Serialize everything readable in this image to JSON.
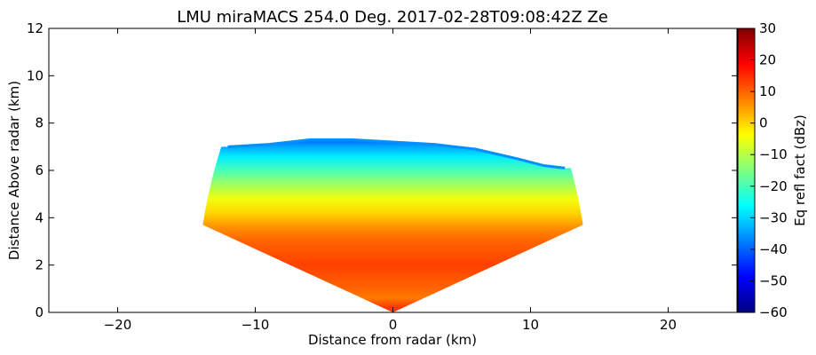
{
  "chart_data": {
    "type": "heatmap",
    "title": "LMU miraMACS 254.0 Deg. 2017-02-28T09:08:42Z  Ze",
    "xlabel": "Distance from radar (km)",
    "ylabel": "Distance Above radar  (km)",
    "xlim": [
      -25,
      25
    ],
    "ylim": [
      0,
      12
    ],
    "xticks": [
      -20,
      -10,
      0,
      10,
      20
    ],
    "yticks": [
      0,
      2,
      4,
      6,
      8,
      10,
      12
    ],
    "colorbar": {
      "label": "Eq refl fact (dBz)",
      "range": [
        -60,
        30
      ],
      "ticks": [
        -60,
        -50,
        -40,
        -30,
        -20,
        -10,
        0,
        10,
        20,
        30
      ],
      "colormap": "jet",
      "colors": [
        "#00007f",
        "#0000ff",
        "#007fff",
        "#00ffff",
        "#7fff7f",
        "#ffff00",
        "#ff7f00",
        "#ff0000",
        "#7f0000"
      ]
    },
    "scan": {
      "azimuth_deg": 254.0,
      "range_km": 14.3,
      "min_elevation_deg": 15,
      "max_elevation_deg": 165,
      "cloud_top_profile": [
        {
          "x": -12.0,
          "top": 7.0
        },
        {
          "x": -9.0,
          "top": 7.1
        },
        {
          "x": -6.0,
          "top": 7.3
        },
        {
          "x": -3.0,
          "top": 7.3
        },
        {
          "x": 0.0,
          "top": 7.2
        },
        {
          "x": 3.0,
          "top": 7.1
        },
        {
          "x": 6.0,
          "top": 6.9
        },
        {
          "x": 9.0,
          "top": 6.5
        },
        {
          "x": 11.0,
          "top": 6.2
        },
        {
          "x": 12.5,
          "top": 6.1
        }
      ],
      "reflectivity_profile": [
        {
          "height": 0.2,
          "dbz": 14
        },
        {
          "height": 0.6,
          "dbz": 8
        },
        {
          "height": 1.0,
          "dbz": 10
        },
        {
          "height": 2.0,
          "dbz": 13
        },
        {
          "height": 3.0,
          "dbz": 10
        },
        {
          "height": 3.6,
          "dbz": 6
        },
        {
          "height": 4.2,
          "dbz": 0
        },
        {
          "height": 4.8,
          "dbz": -5
        },
        {
          "height": 5.4,
          "dbz": -12
        },
        {
          "height": 6.0,
          "dbz": -20
        },
        {
          "height": 6.6,
          "dbz": -28
        },
        {
          "height": 7.0,
          "dbz": -34
        },
        {
          "height": 7.3,
          "dbz": -40
        }
      ]
    }
  }
}
